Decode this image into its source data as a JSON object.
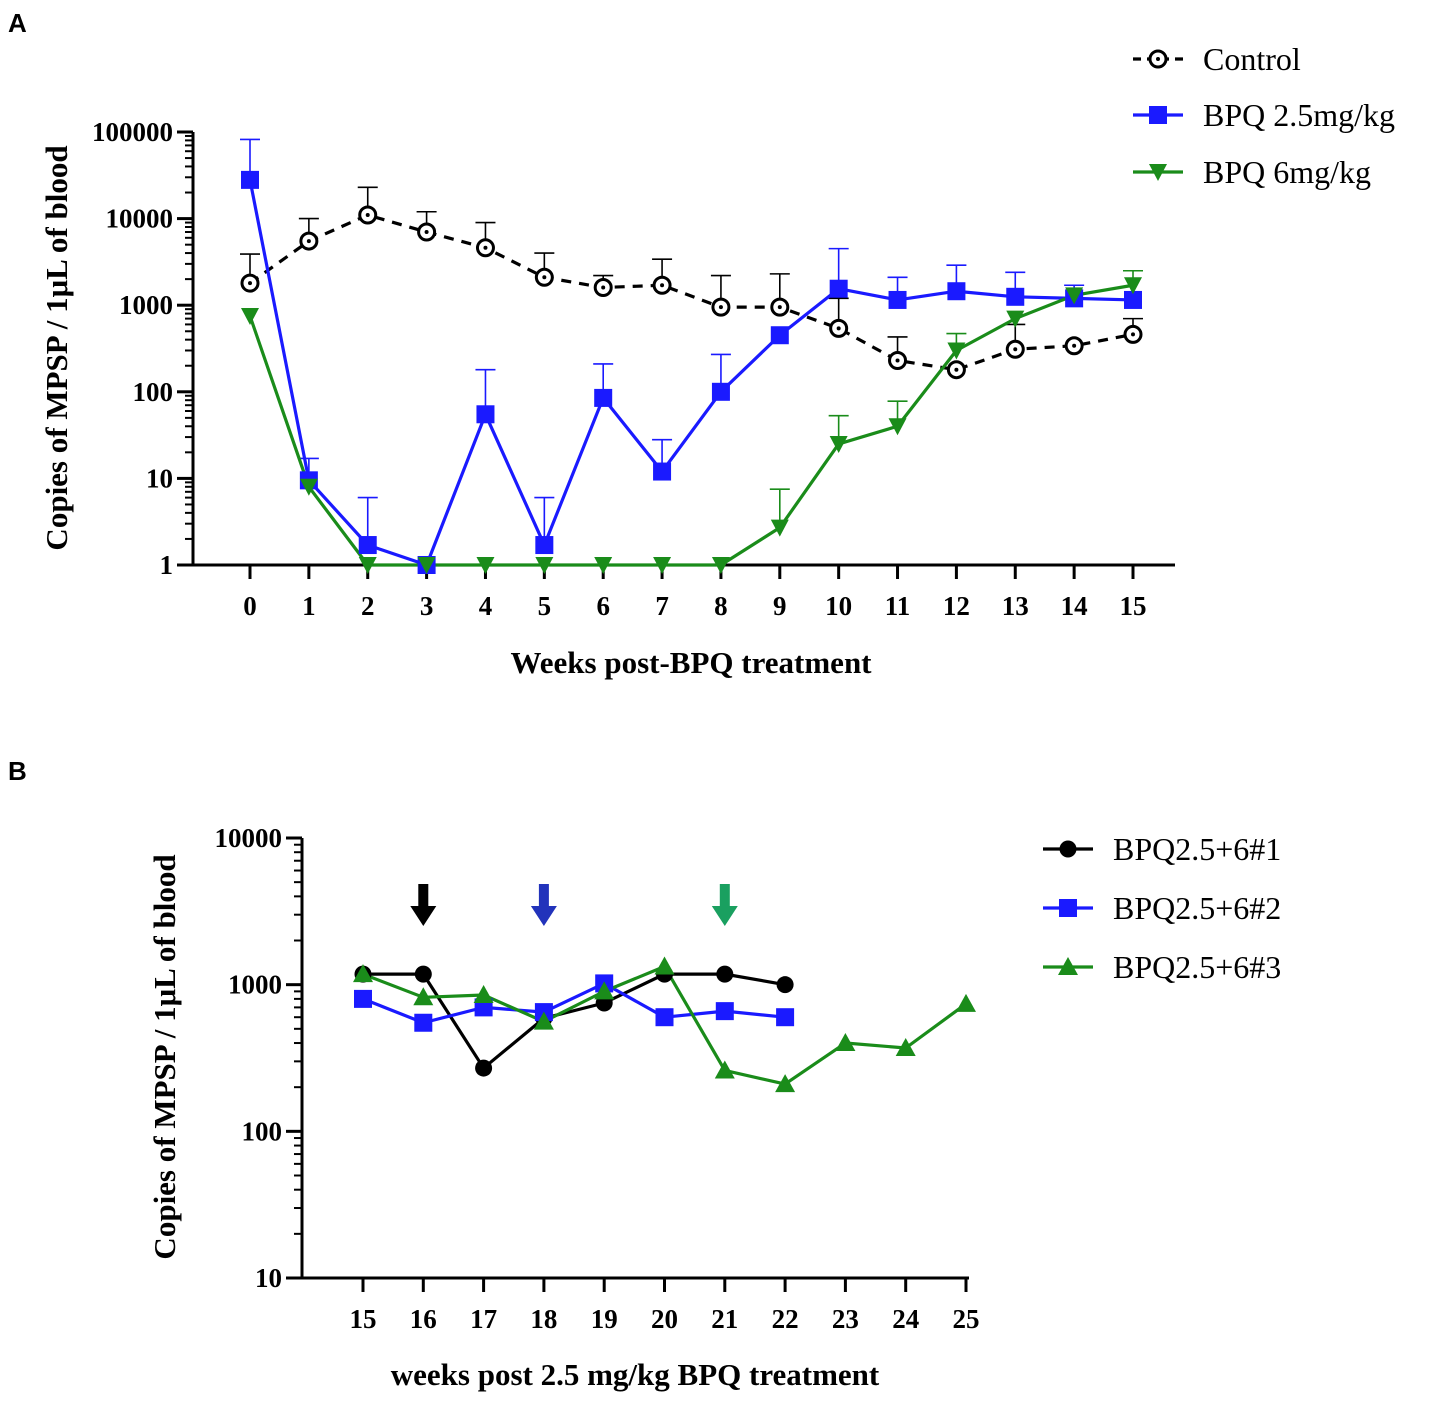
{
  "panels": [
    {
      "letter": "A"
    },
    {
      "letter": "B"
    }
  ],
  "chart_data": [
    {
      "type": "line",
      "panel": "A",
      "title": "",
      "xlabel": "Weeks post-BPQ treatment",
      "ylabel": "Copies of MPSP / 1μL of blood",
      "yscale": "log",
      "ylim": [
        1,
        100000
      ],
      "xlim": [
        0,
        15
      ],
      "x_ticks": [
        "0",
        "1",
        "2",
        "3",
        "4",
        "5",
        "6",
        "7",
        "8",
        "9",
        "10",
        "11",
        "12",
        "13",
        "14",
        "15"
      ],
      "y_ticks": [
        "1",
        "10",
        "100",
        "1000",
        "10000",
        "100000"
      ],
      "legend_position": "top-right",
      "x": [
        0,
        1,
        2,
        3,
        4,
        5,
        6,
        7,
        8,
        9,
        10,
        11,
        12,
        13,
        14,
        15
      ],
      "series": [
        {
          "name": "Control",
          "color": "#000000",
          "marker": "open-circle-dot",
          "dashed": true,
          "values": [
            1800,
            5500,
            11000,
            7000,
            4600,
            2100,
            1600,
            1700,
            950,
            950,
            540,
            230,
            180,
            310,
            340,
            460
          ],
          "error_upper": [
            3900,
            10000,
            23000,
            12000,
            9000,
            4000,
            2200,
            3400,
            2200,
            2300,
            1200,
            430,
            null,
            600,
            null,
            700
          ]
        },
        {
          "name": "BPQ 2.5mg/kg",
          "color": "#1a1aff",
          "marker": "square",
          "dashed": false,
          "values": [
            28000,
            9.5,
            1.7,
            1,
            55,
            1.7,
            85,
            12,
            100,
            450,
            1550,
            1150,
            1450,
            1250,
            1200,
            1150
          ],
          "error_upper": [
            82000,
            17,
            6,
            null,
            180,
            6,
            210,
            28,
            270,
            null,
            4500,
            2100,
            2900,
            2400,
            1700,
            null
          ]
        },
        {
          "name": "BPQ 6mg/kg",
          "color": "#1a8c1a",
          "marker": "triangle-down",
          "dashed": false,
          "values": [
            750,
            8,
            1,
            1,
            1,
            1,
            1,
            1,
            1,
            2.7,
            25,
            40,
            300,
            700,
            1300,
            1700
          ],
          "error_upper": [
            null,
            null,
            null,
            null,
            null,
            null,
            null,
            null,
            null,
            7.5,
            53,
            78,
            470,
            null,
            null,
            2500
          ]
        }
      ]
    },
    {
      "type": "line",
      "panel": "B",
      "title": "",
      "xlabel": "weeks post 2.5 mg/kg BPQ treatment",
      "ylabel": "Copies of MPSP / 1μL of blood",
      "yscale": "log",
      "ylim": [
        10,
        10000
      ],
      "xlim": [
        15,
        25
      ],
      "x_ticks": [
        "15",
        "16",
        "17",
        "18",
        "19",
        "20",
        "21",
        "22",
        "23",
        "24",
        "25"
      ],
      "y_ticks": [
        "10",
        "100",
        "1000",
        "10000"
      ],
      "legend_position": "right",
      "series": [
        {
          "name": "BPQ2.5+6#1",
          "color": "#000000",
          "marker": "circle",
          "x": [
            15,
            16,
            17,
            18,
            19,
            20,
            21,
            22
          ],
          "values": [
            1180,
            1180,
            270,
            590,
            750,
            1180,
            1180,
            1000
          ]
        },
        {
          "name": "BPQ2.5+6#2",
          "color": "#1a1aff",
          "marker": "square",
          "x": [
            15,
            16,
            17,
            18,
            19,
            20,
            21,
            22
          ],
          "values": [
            800,
            550,
            700,
            650,
            1020,
            600,
            660,
            600
          ]
        },
        {
          "name": "BPQ2.5+6#3",
          "color": "#1a8c1a",
          "marker": "triangle-up",
          "x": [
            15,
            16,
            17,
            18,
            19,
            20,
            21,
            22,
            23,
            24,
            25
          ],
          "values": [
            1180,
            820,
            850,
            560,
            900,
            1330,
            260,
            210,
            400,
            370,
            740
          ]
        }
      ],
      "arrows": [
        {
          "x": 16,
          "color": "#000000"
        },
        {
          "x": 18,
          "color": "#2233bb"
        },
        {
          "x": 21,
          "color": "#1aa060"
        }
      ]
    }
  ]
}
